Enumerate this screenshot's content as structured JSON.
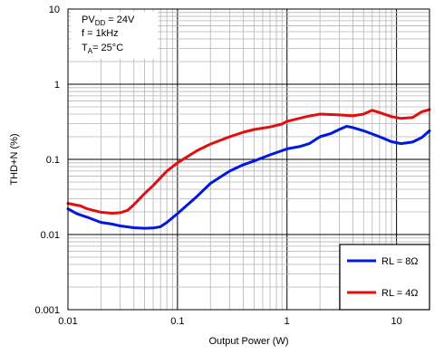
{
  "chart_data": {
    "type": "line",
    "xlabel": "Output Power (W)",
    "ylabel": "THD+N (%)",
    "x_scale": "log",
    "y_scale": "log",
    "xlim": [
      0.01,
      20
    ],
    "ylim": [
      0.001,
      10
    ],
    "x_tick_labels": [
      "0.01",
      "0.1",
      "1",
      "10"
    ],
    "y_tick_labels": [
      "10",
      "1",
      "0.1",
      "0.01",
      "0.001"
    ],
    "grid": true,
    "legend_position": "bottom-right",
    "conditions": {
      "pvdd": {
        "base": "PV",
        "sub": "DD",
        "rest": " = 24V"
      },
      "freq": {
        "base": "f = 1kHz",
        "sub": "",
        "rest": ""
      },
      "temp": {
        "base": "T",
        "sub": "A",
        "rest": "= 25°C"
      }
    },
    "series": [
      {
        "name": "RL = 8Ω",
        "color": "#0018e0",
        "points": [
          [
            0.01,
            0.022
          ],
          [
            0.012,
            0.019
          ],
          [
            0.015,
            0.017
          ],
          [
            0.02,
            0.0145
          ],
          [
            0.025,
            0.0138
          ],
          [
            0.03,
            0.013
          ],
          [
            0.04,
            0.0123
          ],
          [
            0.05,
            0.0121
          ],
          [
            0.06,
            0.0122
          ],
          [
            0.07,
            0.0127
          ],
          [
            0.08,
            0.0145
          ],
          [
            0.1,
            0.019
          ],
          [
            0.15,
            0.032
          ],
          [
            0.2,
            0.048
          ],
          [
            0.3,
            0.07
          ],
          [
            0.4,
            0.085
          ],
          [
            0.5,
            0.095
          ],
          [
            0.7,
            0.115
          ],
          [
            1.0,
            0.138
          ],
          [
            1.3,
            0.148
          ],
          [
            1.6,
            0.162
          ],
          [
            2.0,
            0.2
          ],
          [
            2.5,
            0.22
          ],
          [
            3.0,
            0.25
          ],
          [
            3.5,
            0.275
          ],
          [
            4.0,
            0.265
          ],
          [
            5.0,
            0.24
          ],
          [
            7.0,
            0.2
          ],
          [
            9.0,
            0.172
          ],
          [
            11.0,
            0.162
          ],
          [
            14.0,
            0.17
          ],
          [
            17.0,
            0.195
          ],
          [
            20.0,
            0.24
          ]
        ]
      },
      {
        "name": "RL = 4Ω",
        "color": "#e01010",
        "points": [
          [
            0.01,
            0.026
          ],
          [
            0.013,
            0.024
          ],
          [
            0.015,
            0.022
          ],
          [
            0.02,
            0.0198
          ],
          [
            0.025,
            0.0192
          ],
          [
            0.03,
            0.0195
          ],
          [
            0.035,
            0.021
          ],
          [
            0.04,
            0.025
          ],
          [
            0.05,
            0.035
          ],
          [
            0.06,
            0.045
          ],
          [
            0.07,
            0.057
          ],
          [
            0.08,
            0.07
          ],
          [
            0.1,
            0.09
          ],
          [
            0.15,
            0.13
          ],
          [
            0.2,
            0.16
          ],
          [
            0.3,
            0.2
          ],
          [
            0.4,
            0.23
          ],
          [
            0.5,
            0.25
          ],
          [
            0.7,
            0.27
          ],
          [
            0.9,
            0.295
          ],
          [
            1.0,
            0.32
          ],
          [
            1.5,
            0.37
          ],
          [
            2.0,
            0.4
          ],
          [
            3.0,
            0.39
          ],
          [
            4.0,
            0.38
          ],
          [
            5.0,
            0.4
          ],
          [
            6.0,
            0.45
          ],
          [
            7.0,
            0.42
          ],
          [
            9.0,
            0.37
          ],
          [
            11.0,
            0.35
          ],
          [
            14.0,
            0.36
          ],
          [
            17.0,
            0.43
          ],
          [
            20.0,
            0.46
          ]
        ]
      }
    ]
  }
}
